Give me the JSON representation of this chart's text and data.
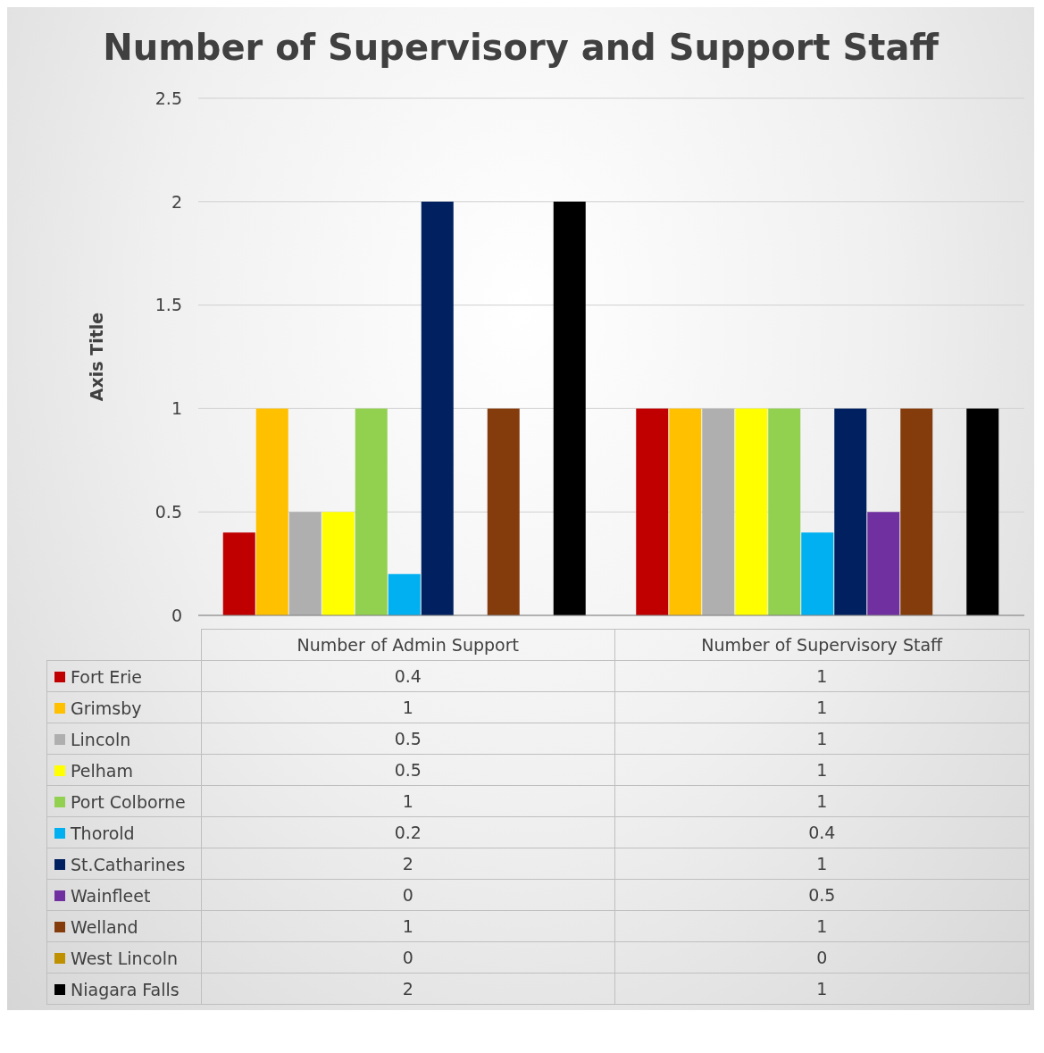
{
  "chart_data": {
    "type": "bar",
    "title": "Number of Supervisory and Support Staff",
    "ylabel": "Axis Title",
    "categories": [
      "Number of Admin Support",
      "Number of Supervisory Staff"
    ],
    "series": [
      {
        "name": "Fort Erie",
        "color": "#c00000",
        "values": [
          0.4,
          1
        ]
      },
      {
        "name": "Grimsby",
        "color": "#ffc000",
        "values": [
          1,
          1
        ]
      },
      {
        "name": "Lincoln",
        "color": "#afafaf",
        "values": [
          0.5,
          1
        ]
      },
      {
        "name": "Pelham",
        "color": "#ffff00",
        "values": [
          0.5,
          1
        ]
      },
      {
        "name": "Port Colborne",
        "color": "#92d050",
        "values": [
          1,
          1
        ]
      },
      {
        "name": "Thorold",
        "color": "#00b0f0",
        "values": [
          0.2,
          0.4
        ]
      },
      {
        "name": "St.Catharines",
        "color": "#002060",
        "values": [
          2,
          1
        ]
      },
      {
        "name": "Wainfleet",
        "color": "#7030a0",
        "values": [
          0,
          0.5
        ]
      },
      {
        "name": "Welland",
        "color": "#843c0c",
        "values": [
          1,
          1
        ]
      },
      {
        "name": "West Lincoln",
        "color": "#bf9000",
        "values": [
          0,
          0
        ]
      },
      {
        "name": "Niagara Falls",
        "color": "#000000",
        "values": [
          2,
          1
        ]
      }
    ],
    "ylim": [
      0,
      2.5
    ],
    "yticks": [
      0,
      0.5,
      1,
      1.5,
      2,
      2.5
    ],
    "grid": "y",
    "legend": "bottom",
    "data_labels": true
  }
}
